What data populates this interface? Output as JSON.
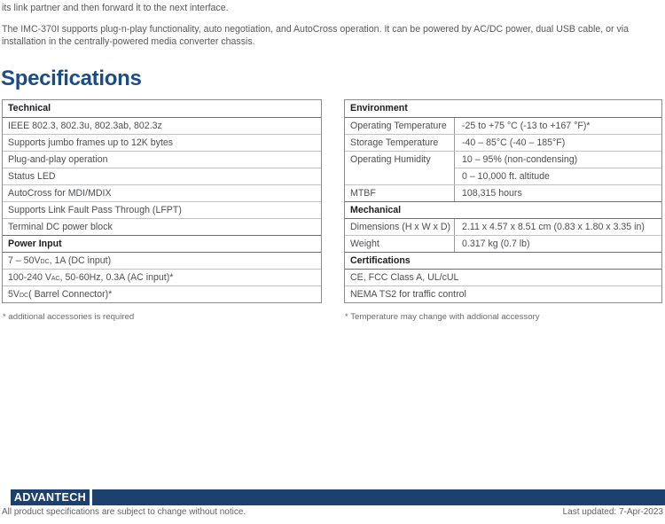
{
  "intro": {
    "line1": "its link partner and then forward it to the next interface.",
    "line2": "The IMC-370I supports plug-n-play functionality, auto negotiation, and AutoCross operation. It can be powered by AC/DC power, dual USB cable, or via installation in the centrally-powered media converter chassis."
  },
  "heading": "Specifications",
  "tech_table": {
    "header1": "Technical",
    "rows1": [
      "IEEE 802.3, 802.3u, 802.3ab, 802.3z",
      "Supports jumbo frames up to 12K bytes",
      "Plug-and-play operation",
      "Status LED",
      "AutoCross for MDI/MDIX",
      "Supports Link Fault Pass Through (LFPT)",
      "Terminal DC power block"
    ],
    "header2": "Power Input",
    "power_rows": [
      {
        "pre": "7 – 50V",
        "sub": "DC",
        "post": ", 1A (DC input)"
      },
      {
        "pre": "100-240 V",
        "sub": "AC",
        "post": ", 50-60Hz, 0.3A (AC input)*"
      },
      {
        "pre": "5V",
        "sub": "DC",
        "post": " ( Barrel Connector)*"
      }
    ],
    "footnote": "* additional accessories is required"
  },
  "env_table": {
    "header1": "Environment",
    "rows": [
      {
        "label": "Operating Temperature",
        "value": "-25 to +75 °C (-13 to +167 °F)*"
      },
      {
        "label": "Storage Temperature",
        "value": "-40 – 85°C (-40 – 185°F)"
      },
      {
        "label": "Operating Humidity",
        "value": "10 – 95% (non-condensing)"
      },
      {
        "label": "",
        "value": "0 – 10,000 ft. altitude"
      },
      {
        "label": "MTBF",
        "value": "108,315 hours"
      }
    ],
    "header2": "Mechanical",
    "mech_rows": [
      {
        "label": "Dimensions (H x W x D)",
        "value": "2.11 x 4.57 x 8.51 cm (0.83 x 1.80 x 3.35 in)"
      },
      {
        "label": "Weight",
        "value": "0.317 kg (0.7 lb)"
      }
    ],
    "header3": "Certifications",
    "cert_rows": [
      "CE, FCC Class A, UL/cUL",
      "NEMA TS2 for traffic control"
    ],
    "footnote": "* Temperature may change with addional accessory"
  },
  "footer": {
    "logo_text": "ADVANTECH",
    "disclaimer": "All product specifications are subject to change without notice.",
    "last_updated": "Last updated: 7-Apr-2023"
  },
  "colors": {
    "heading_navy": "#1a4c86",
    "footer_navy": "#1c416f",
    "table_border": "#8a8c8f",
    "row_separator_light": "#c0c2c4",
    "row_separator_dark": "#6d6e71",
    "body_text": "#57585a"
  }
}
